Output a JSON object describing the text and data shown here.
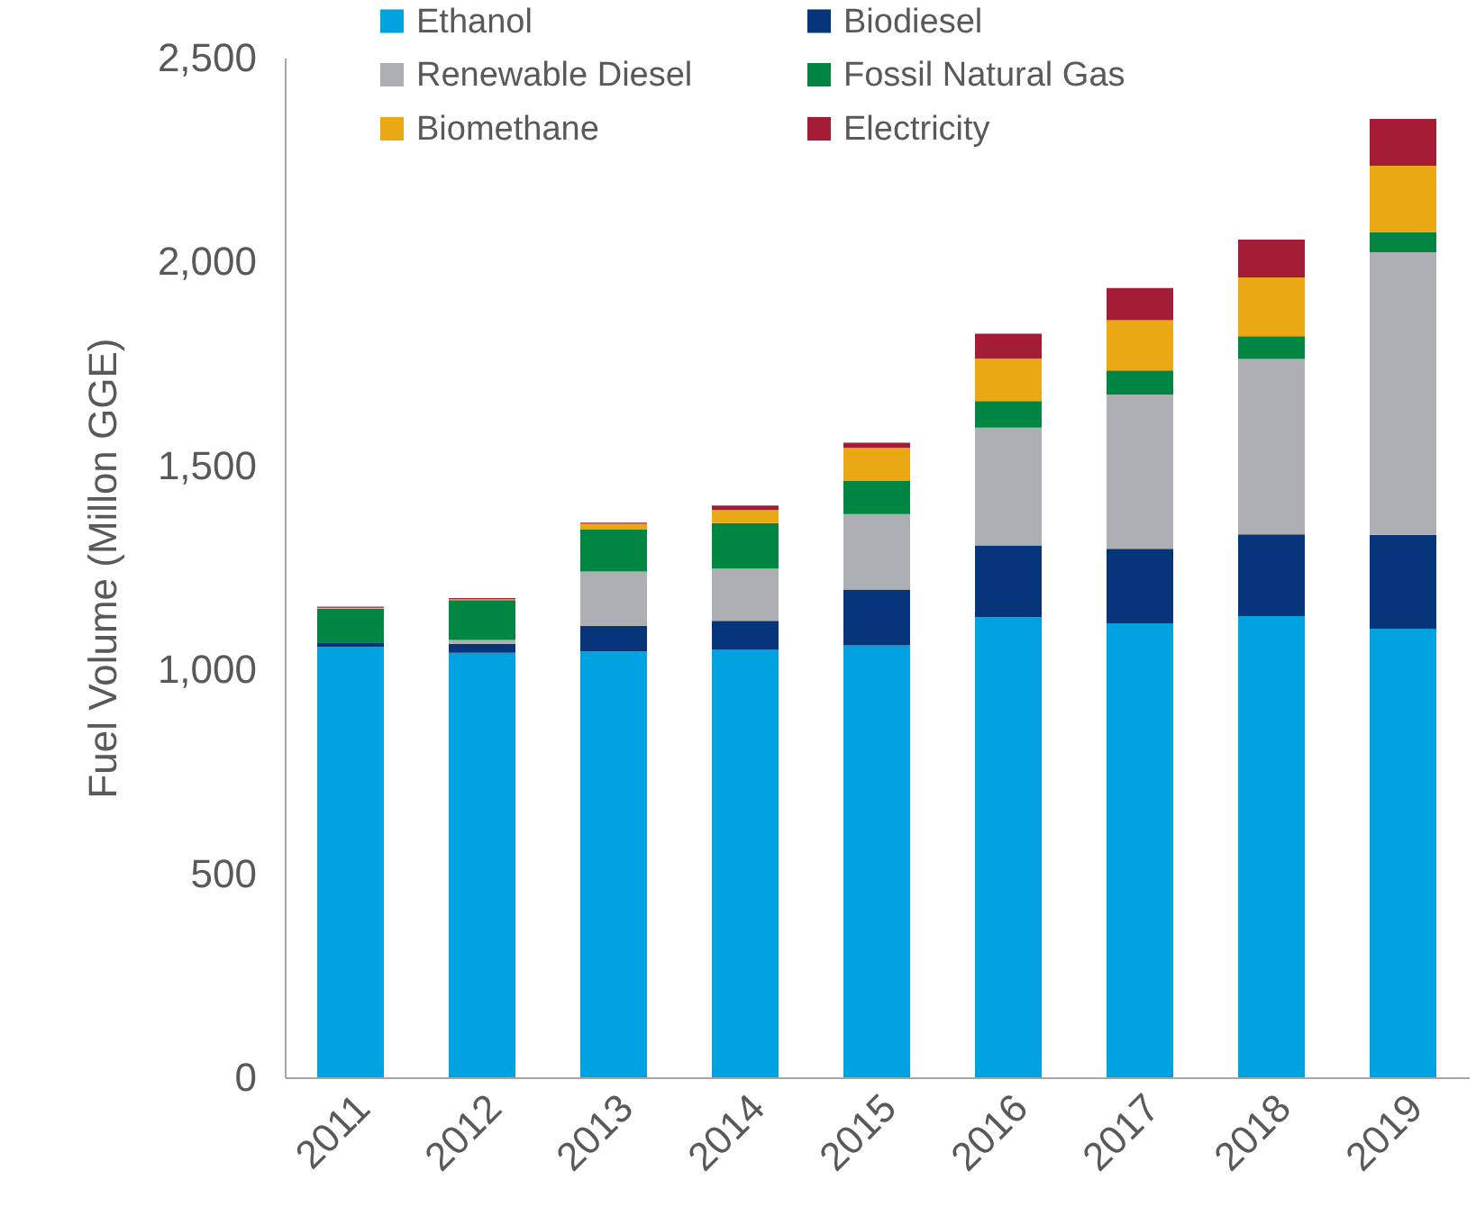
{
  "chart_data": {
    "type": "bar",
    "ylabel": "Fuel Volume (Millon GGE)",
    "categories": [
      "2011",
      "2012",
      "2013",
      "2014",
      "2015",
      "2016",
      "2017",
      "2018",
      "2019"
    ],
    "stacked": true,
    "legend": "top",
    "ylim": [
      0,
      2500
    ],
    "yticks": [
      0,
      {
        "value": 500,
        "label": "500"
      },
      {
        "value": 1000,
        "label": "1,000"
      },
      {
        "value": 1500,
        "label": "1,500"
      },
      {
        "value": 2000,
        "label": "2,000"
      },
      {
        "value": 2500,
        "label": "2,500"
      }
    ],
    "series": [
      {
        "name": "Ethanol",
        "color": "#00a3e0",
        "values": [
          1055,
          1041,
          1044,
          1048,
          1059,
          1128,
          1113,
          1131,
          1100
        ]
      },
      {
        "name": "Biodiesel",
        "color": "#06357a",
        "values": [
          11,
          22,
          63,
          71,
          137,
          176,
          183,
          200,
          230
        ]
      },
      {
        "name": "Renewable Diesel",
        "color": "#adafb2",
        "values": [
          null,
          9,
          133,
          128,
          185,
          289,
          378,
          430,
          693
        ]
      },
      {
        "name": "Fossil Natural Gas",
        "color": "#008542",
        "values": [
          83,
          98,
          104,
          112,
          82,
          65,
          59,
          56,
          49
        ]
      },
      {
        "name": "Biomethane",
        "color": "#eaa814",
        "values": [
          2,
          2,
          13,
          32,
          80,
          104,
          123,
          144,
          163
        ]
      },
      {
        "name": "Electricity",
        "color": "#a51c36",
        "values": [
          3,
          3,
          3,
          11,
          13,
          61,
          79,
          93,
          115
        ]
      }
    ]
  }
}
